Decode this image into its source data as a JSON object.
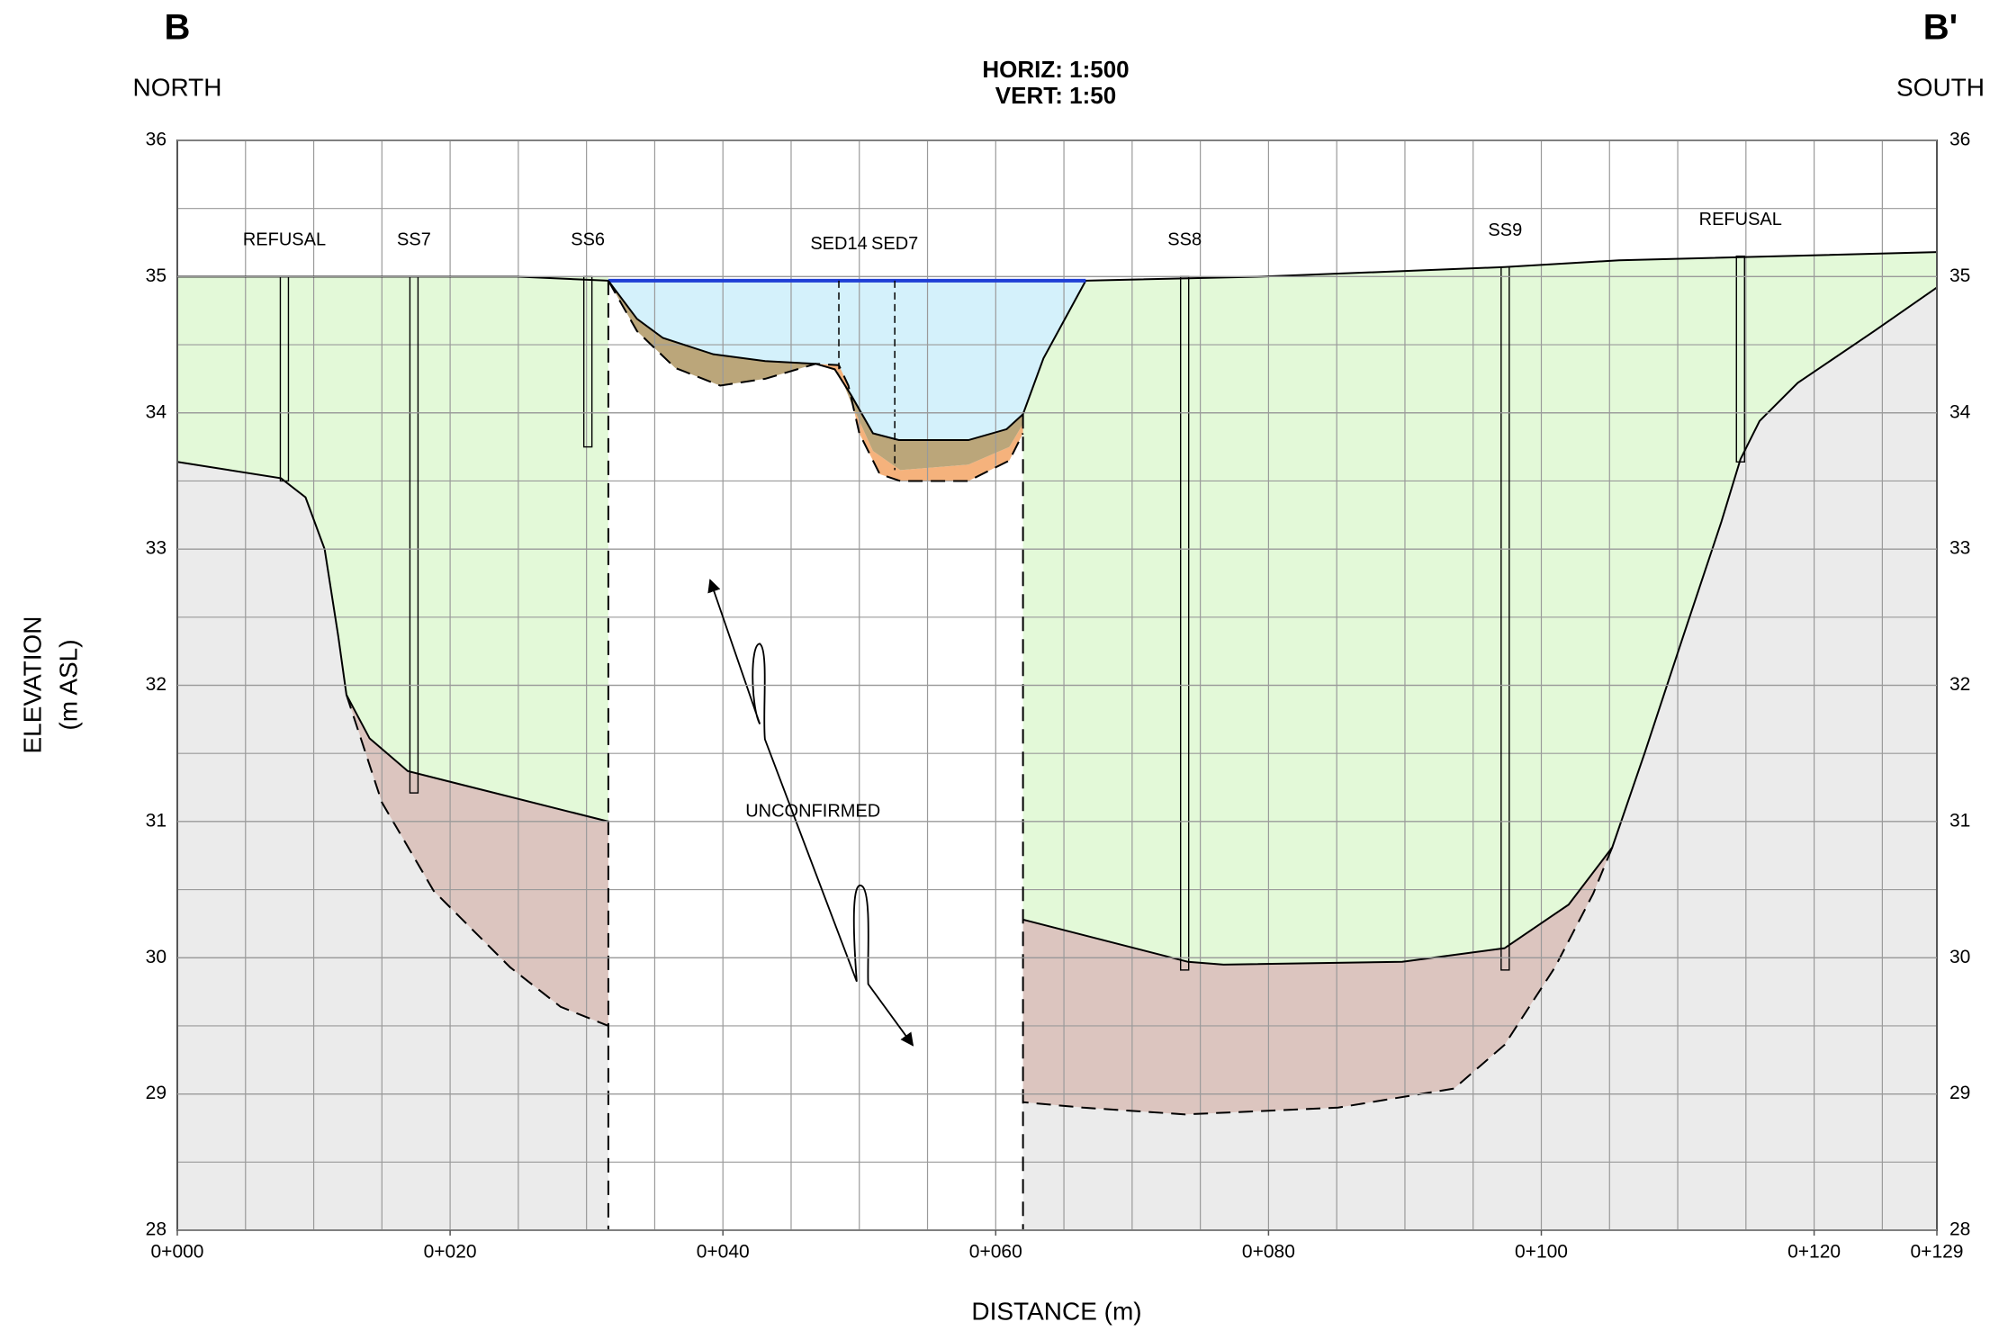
{
  "chart_data": {
    "type": "cross-section",
    "left_label": "B",
    "right_label": "B'",
    "left_direction": "NORTH",
    "right_direction": "SOUTH",
    "scale_h": "HORIZ:  1:500",
    "scale_v": "VERT:  1:50",
    "ylabel": [
      "ELEVATION",
      "(m ASL)"
    ],
    "xlabel": "DISTANCE (m)",
    "annotation": {
      "text": "UNCONFIRMED",
      "x": 46.6,
      "y": 31.07
    },
    "xlim": [
      0,
      129
    ],
    "ylim": [
      28,
      36
    ],
    "xticks": [
      {
        "value": 0,
        "label": "0+000"
      },
      {
        "value": 20,
        "label": "0+020"
      },
      {
        "value": 40,
        "label": "0+040"
      },
      {
        "value": 60,
        "label": "0+060"
      },
      {
        "value": 80,
        "label": "0+080"
      },
      {
        "value": 100,
        "label": "0+100"
      },
      {
        "value": 120,
        "label": "0+120"
      },
      {
        "value": 129,
        "label": "0+129"
      }
    ],
    "yticks": [
      28,
      29,
      30,
      31,
      32,
      33,
      34,
      35,
      36
    ],
    "xgrid": [
      5,
      10,
      15,
      20,
      25,
      30,
      35,
      40,
      45,
      50,
      55,
      60,
      65,
      70,
      75,
      80,
      85,
      90,
      95,
      100,
      105,
      110,
      115,
      120,
      125
    ],
    "ygrid": [
      28.5,
      29,
      29.5,
      30,
      30.5,
      31,
      31.5,
      32,
      32.5,
      33,
      33.5,
      34,
      34.5,
      35,
      35.5
    ],
    "layers": [
      {
        "color": "#ebebeb",
        "x": [
          0,
          7.6,
          9.4,
          10.8,
          11.8,
          12.4,
          15.0,
          18.8,
          24.4,
          28.1,
          31.6,
          31.6,
          0
        ],
        "y": [
          33.64,
          33.52,
          33.38,
          33.0,
          32.36,
          31.93,
          31.14,
          30.49,
          29.93,
          29.64,
          29.5,
          28,
          28
        ]
      },
      {
        "color": "#ebebeb",
        "x": [
          129,
          124.4,
          118.8,
          116,
          114.6,
          113.2,
          110.4,
          107.6,
          105.2,
          103.8,
          101,
          97.3,
          93.6,
          85.1,
          73.9,
          66.4,
          62,
          62,
          129
        ],
        "y": [
          34.92,
          34.6,
          34.22,
          33.94,
          33.66,
          33.2,
          32.36,
          31.51,
          30.81,
          30.47,
          29.93,
          29.36,
          29.04,
          28.9,
          28.85,
          28.9,
          28.94,
          28,
          28
        ]
      },
      {
        "color": "#e3f9d8",
        "x": [
          0,
          31.6,
          31.6,
          16.9,
          14.1,
          12.4,
          11.8,
          10.8,
          9.4,
          7.6,
          0
        ],
        "y": [
          35,
          35,
          31.0,
          31.37,
          31.61,
          31.93,
          32.36,
          33.0,
          33.38,
          33.52,
          33.64
        ]
      },
      {
        "color": "#dcc5bf",
        "x": [
          12.4,
          14.1,
          16.9,
          31.6,
          31.6,
          28.1,
          24.4,
          18.8,
          15.0
        ],
        "y": [
          31.93,
          31.61,
          31.37,
          31.0,
          29.5,
          29.64,
          29.93,
          30.49,
          31.14
        ]
      },
      {
        "color": "#e3f9d8",
        "x": [
          62,
          63.5,
          66.6,
          79.5,
          97.3,
          105.7,
          129,
          129,
          124.4,
          118.8,
          116,
          114.6,
          113.2,
          110.4,
          107.6,
          105.2,
          102,
          97.3,
          89.8,
          76.7,
          74.1,
          62
        ],
        "y": [
          33.99,
          34.4,
          34.97,
          35.0,
          35.07,
          35.12,
          35.18,
          34.92,
          34.6,
          34.22,
          33.94,
          33.66,
          33.2,
          32.36,
          31.51,
          30.81,
          30.39,
          30.07,
          29.97,
          29.95,
          29.97,
          30.28
        ]
      },
      {
        "color": "#dcc5bf",
        "x": [
          62,
          74.1,
          76.7,
          89.8,
          97.3,
          102,
          105.2,
          103.8,
          101,
          97.3,
          93.6,
          85.1,
          73.9,
          66.4,
          62
        ],
        "y": [
          30.28,
          29.97,
          29.95,
          29.97,
          30.07,
          30.39,
          30.81,
          30.47,
          29.93,
          29.36,
          29.04,
          28.9,
          28.85,
          28.9,
          28.94
        ]
      },
      {
        "color": "#d4f1fb",
        "x": [
          31.6,
          66.6,
          63.5,
          62,
          60.8,
          58.0,
          52.9,
          51.0,
          49.4,
          48.2,
          46.8,
          43.1,
          39.3,
          35.6,
          33.7
        ],
        "y": [
          34.97,
          34.97,
          34.4,
          33.99,
          33.88,
          33.8,
          33.8,
          33.85,
          34.13,
          34.32,
          34.36,
          34.38,
          34.43,
          34.55,
          34.69
        ]
      },
      {
        "color": "#f5b27c",
        "x": [
          46.8,
          48.5,
          49.5,
          51,
          53,
          58,
          61,
          62,
          62,
          61,
          58,
          53,
          51.5,
          50,
          49.2,
          48.5
        ],
        "y": [
          34.36,
          34.3,
          34.05,
          33.72,
          33.58,
          33.62,
          33.75,
          33.92,
          33.85,
          33.65,
          33.5,
          33.5,
          33.55,
          33.85,
          34.2,
          34.35
        ]
      },
      {
        "color": "#bba67a",
        "x": [
          31.6,
          33.7,
          35.6,
          39.3,
          43.1,
          46.8,
          48.2,
          49.4,
          51.0,
          52.9,
          58.0,
          60.8,
          62,
          62,
          61,
          58,
          53,
          51,
          49.5,
          48.5,
          46.8,
          43.1,
          39.8,
          36.5,
          33.7
        ],
        "y": [
          34.97,
          34.69,
          34.55,
          34.43,
          34.38,
          34.36,
          34.32,
          34.13,
          33.85,
          33.8,
          33.8,
          33.88,
          33.99,
          33.92,
          33.75,
          33.62,
          33.58,
          33.72,
          34.05,
          34.3,
          34.36,
          34.25,
          34.2,
          34.33,
          34.6
        ]
      }
    ],
    "lines": [
      {
        "color": "#000000",
        "dashed": false,
        "x": [
          0,
          24.9,
          31.6
        ],
        "y": [
          35,
          35,
          34.97
        ]
      },
      {
        "color": "#000000",
        "dashed": false,
        "x": [
          62,
          63.5,
          66.6,
          79.5,
          97.3,
          105.7,
          129
        ],
        "y": [
          33.99,
          34.4,
          34.97,
          35.0,
          35.07,
          35.12,
          35.18
        ]
      },
      {
        "color": "#1f3fd6",
        "dashed": false,
        "x": [
          31.6,
          66.6
        ],
        "y": [
          34.97,
          34.97
        ]
      },
      {
        "color": "#000000",
        "dashed": false,
        "x": [
          0,
          7.6,
          9.4,
          10.8,
          11.8,
          12.4,
          14.1,
          16.9,
          31.6
        ],
        "y": [
          33.64,
          33.52,
          33.38,
          33.0,
          32.36,
          31.93,
          31.61,
          31.37,
          31.0
        ]
      },
      {
        "color": "#000000",
        "dashed": true,
        "x": [
          12.4,
          15.0,
          18.8,
          24.4,
          28.1,
          31.6
        ],
        "y": [
          31.93,
          31.14,
          30.49,
          29.93,
          29.64,
          29.5
        ]
      },
      {
        "color": "#000000",
        "dashed": false,
        "x": [
          129,
          124.4,
          118.8,
          116,
          114.6,
          113.2,
          110.4,
          107.6,
          105.2,
          102,
          97.3,
          89.8,
          76.7,
          74.1,
          62
        ],
        "y": [
          34.92,
          34.6,
          34.22,
          33.94,
          33.66,
          33.2,
          32.36,
          31.51,
          30.81,
          30.39,
          30.07,
          29.97,
          29.95,
          29.97,
          30.28
        ]
      },
      {
        "color": "#000000",
        "dashed": true,
        "x": [
          105.2,
          103.8,
          101,
          97.3,
          93.6,
          85.1,
          73.9,
          66.4,
          62
        ],
        "y": [
          30.81,
          30.47,
          29.93,
          29.36,
          29.04,
          28.9,
          28.85,
          28.9,
          28.94
        ]
      },
      {
        "color": "#000000",
        "dashed": false,
        "x": [
          31.6,
          33.7,
          35.6,
          39.3,
          43.1,
          46.8,
          48.2,
          49.4,
          51.0,
          52.9,
          58.0,
          60.8,
          62
        ],
        "y": [
          34.97,
          34.69,
          34.55,
          34.43,
          34.38,
          34.36,
          34.32,
          34.13,
          33.85,
          33.8,
          33.8,
          33.88,
          33.99
        ]
      },
      {
        "color": "#000000",
        "dashed": true,
        "x": [
          31.6,
          33.7,
          36.5,
          39.8,
          43.1,
          46.8,
          48.5,
          49.2,
          50,
          51.5,
          53,
          58,
          61,
          62
        ],
        "y": [
          34.97,
          34.6,
          34.33,
          34.2,
          34.25,
          34.36,
          34.35,
          34.2,
          33.85,
          33.55,
          33.5,
          33.5,
          33.65,
          33.85
        ]
      },
      {
        "color": "#000000",
        "dashed": true,
        "x": [
          31.6,
          31.6
        ],
        "y": [
          34.97,
          28
        ]
      },
      {
        "color": "#000000",
        "dashed": true,
        "x": [
          62,
          62
        ],
        "y": [
          33.99,
          28
        ]
      }
    ],
    "boreholes": [
      {
        "label": "REFUSAL",
        "x": 7.85,
        "top": 35,
        "bottom": 33.5,
        "dashed": false
      },
      {
        "label": "SS7",
        "x": 17.35,
        "top": 35,
        "bottom": 31.21,
        "dashed": false
      },
      {
        "label": "SS6",
        "x": 30.1,
        "top": 35,
        "bottom": 33.75,
        "dashed": false
      },
      {
        "label": "SED14",
        "x": 48.5,
        "top": 34.97,
        "bottom": 34.32,
        "dashed": true
      },
      {
        "label": "SED7",
        "x": 52.6,
        "top": 34.97,
        "bottom": 33.58,
        "dashed": true
      },
      {
        "label": "SS8",
        "x": 73.85,
        "top": 35,
        "bottom": 29.91,
        "dashed": false
      },
      {
        "label": "SS9",
        "x": 97.35,
        "top": 35.07,
        "bottom": 29.91,
        "dashed": false
      },
      {
        "label": "REFUSAL",
        "x": 114.6,
        "top": 35.15,
        "bottom": 33.64,
        "dashed": false
      }
    ]
  }
}
